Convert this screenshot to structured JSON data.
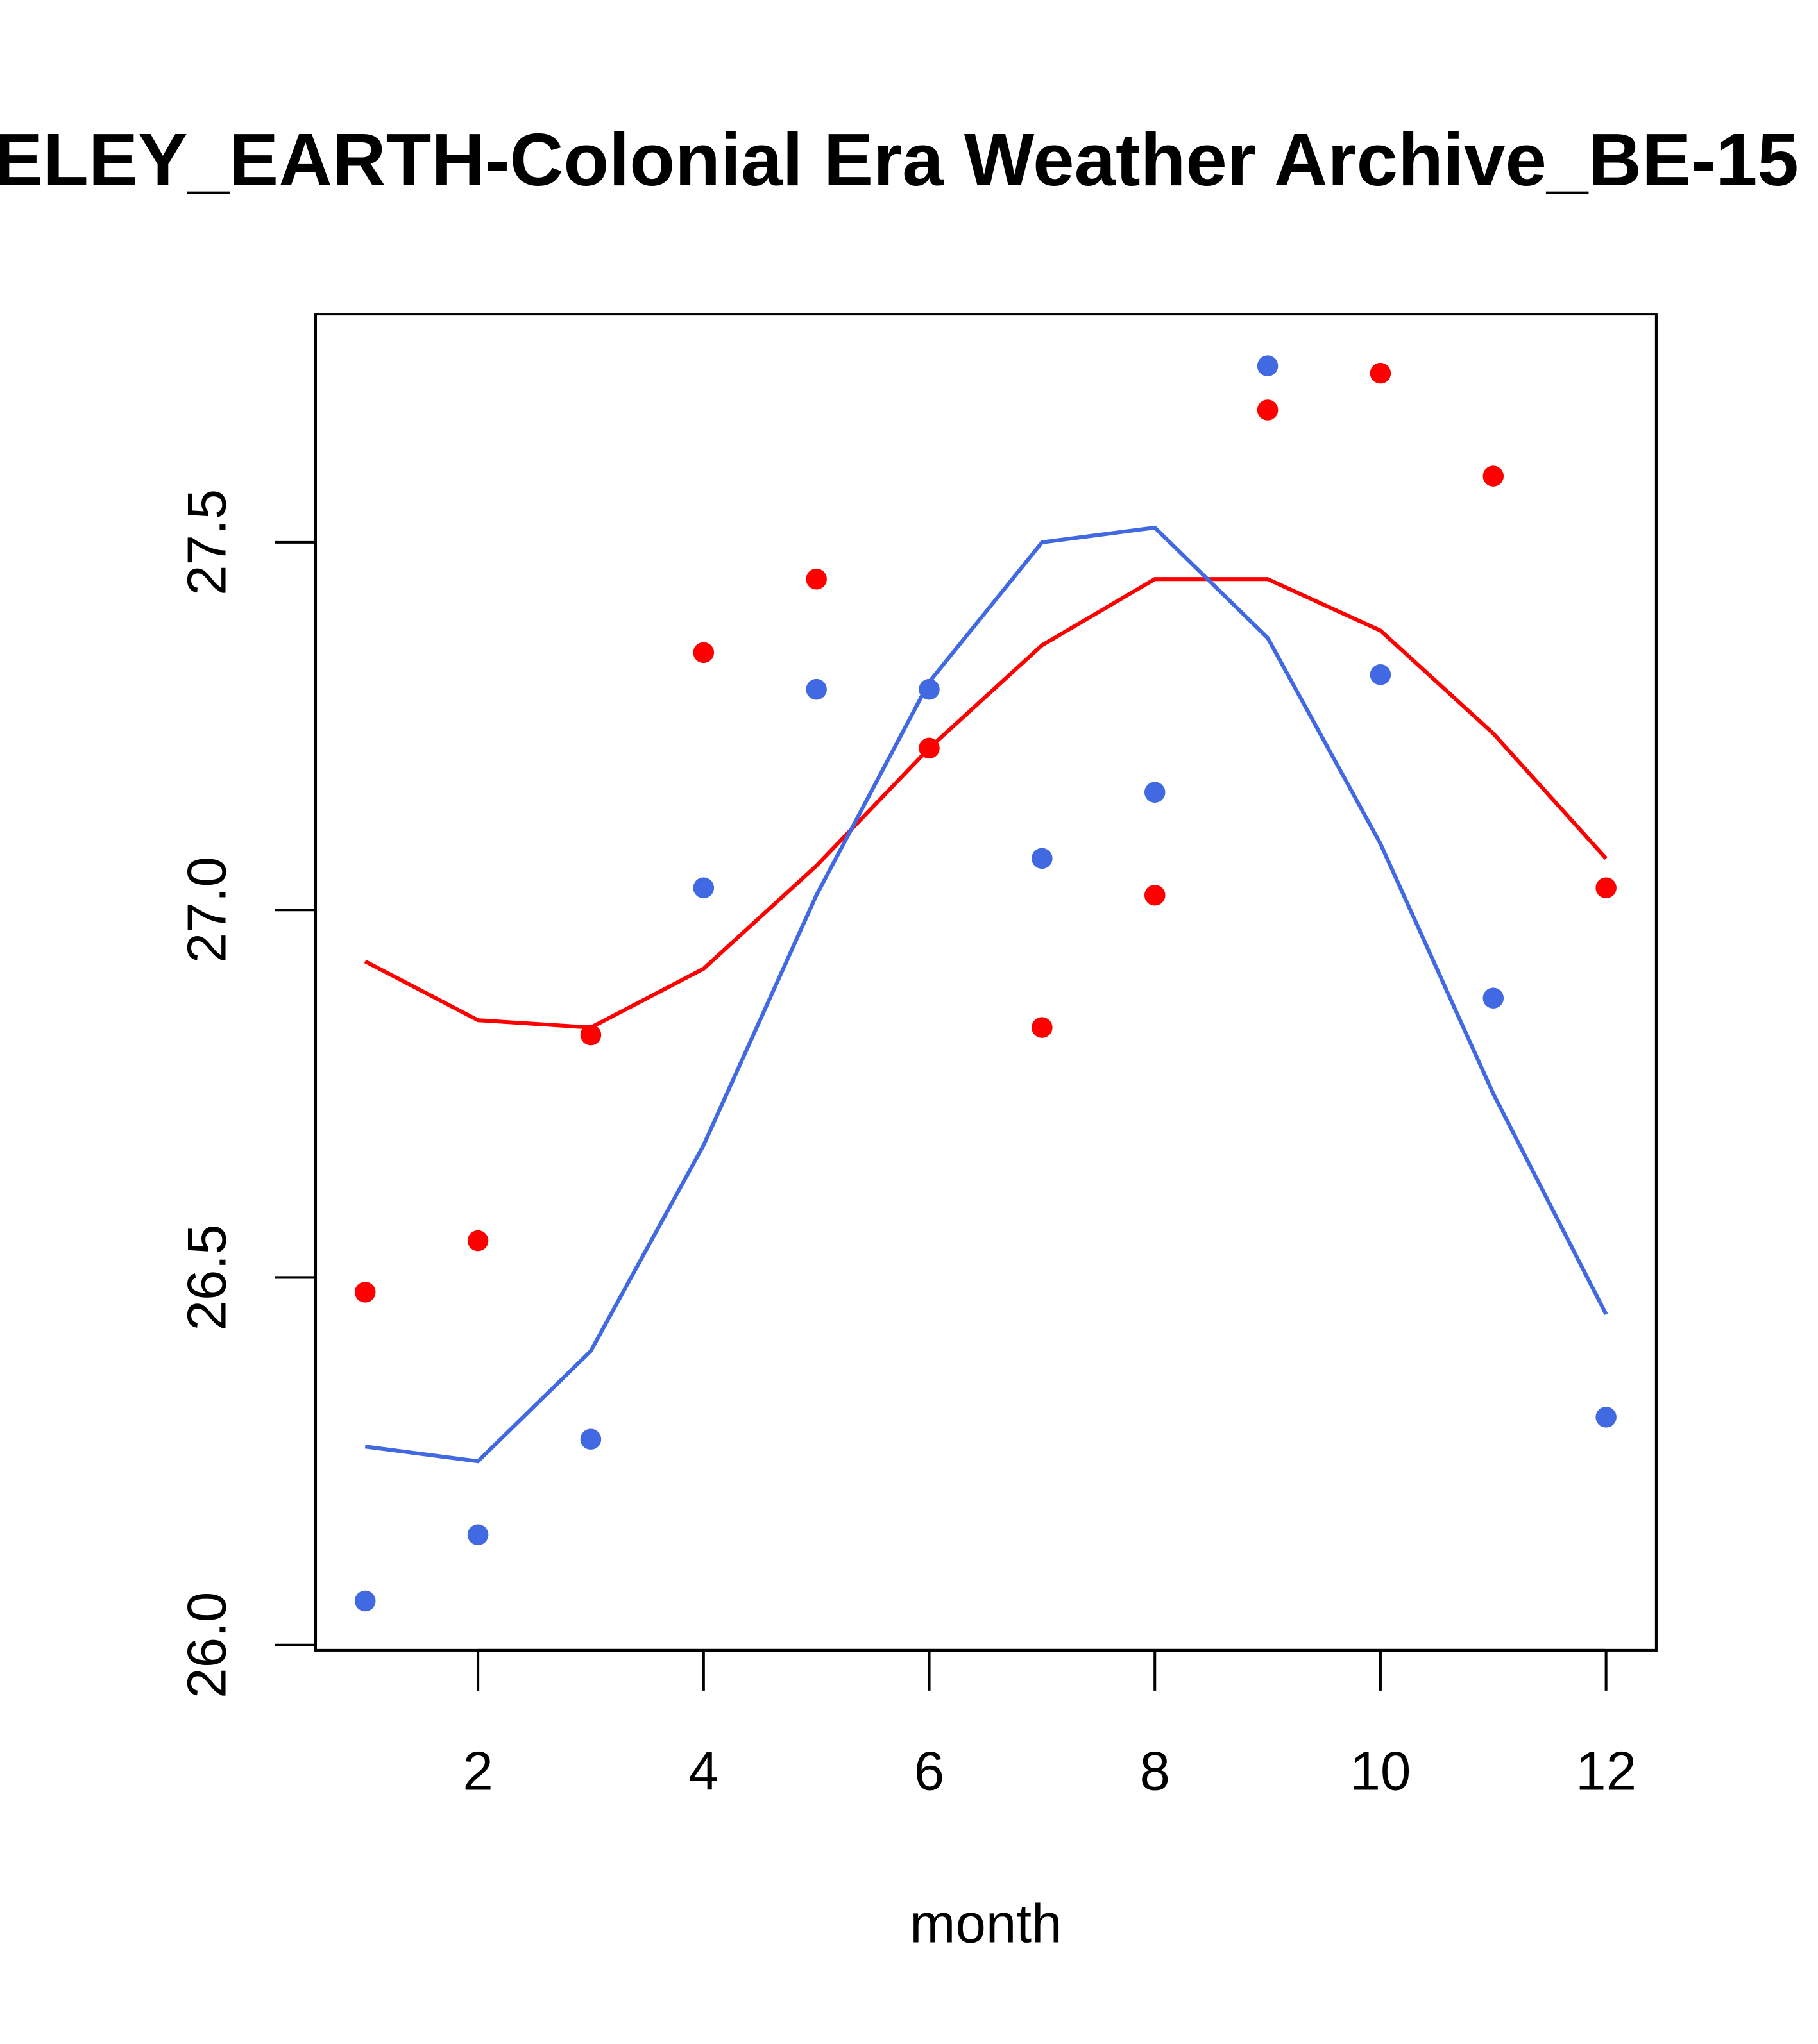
{
  "chart_data": {
    "type": "scatter",
    "title": "ELEY_EARTH-Colonial Era Weather Archive_BE-15",
    "xlabel": "month",
    "ylabel": "",
    "xlim": [
      0.56,
      12.44
    ],
    "ylim": [
      25.99,
      27.81
    ],
    "xticks": [
      2,
      4,
      6,
      8,
      10,
      12
    ],
    "xtick_labels": [
      "2",
      "4",
      "6",
      "8",
      "10",
      "12"
    ],
    "yticks": [
      26.0,
      26.5,
      27.0,
      27.5
    ],
    "ytick_labels": [
      "26.0",
      "26.5",
      "27.0",
      "27.5"
    ],
    "x": [
      1,
      2,
      3,
      4,
      5,
      6,
      7,
      8,
      9,
      10,
      11,
      12
    ],
    "series": [
      {
        "name": "red points",
        "kind": "points",
        "color": "#ff0000",
        "values": [
          26.48,
          26.55,
          26.83,
          27.35,
          27.45,
          27.22,
          26.84,
          27.02,
          27.68,
          27.73,
          27.59,
          27.03
        ]
      },
      {
        "name": "blue points",
        "kind": "points",
        "color": "#4169e1",
        "values": [
          26.06,
          26.15,
          26.28,
          27.03,
          27.3,
          27.3,
          27.07,
          27.16,
          27.74,
          27.32,
          26.88,
          26.31
        ]
      },
      {
        "name": "red line",
        "kind": "line",
        "color": "#ff0000",
        "values": [
          26.93,
          26.85,
          26.84,
          26.92,
          27.06,
          27.22,
          27.36,
          27.45,
          27.45,
          27.38,
          27.24,
          27.07
        ]
      },
      {
        "name": "blue line",
        "kind": "line",
        "color": "#4169e1",
        "values": [
          26.27,
          26.25,
          26.4,
          26.68,
          27.02,
          27.31,
          27.5,
          27.52,
          27.37,
          27.09,
          26.75,
          26.45
        ]
      }
    ],
    "grid": false,
    "legend": "none"
  }
}
